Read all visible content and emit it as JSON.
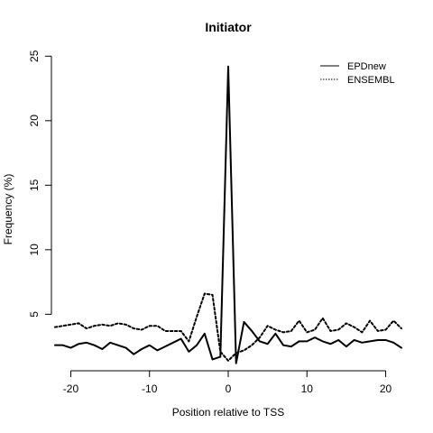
{
  "chart_data": {
    "type": "line",
    "title": "Initiator",
    "xlabel": "Position relative to TSS",
    "ylabel": "Frequency (%)",
    "xlim": [
      -22,
      22
    ],
    "ylim": [
      0.9,
      25.3
    ],
    "x_ticks": [
      -20,
      -10,
      0,
      10,
      20
    ],
    "x_tick_labels": [
      "-20",
      "-10",
      "0",
      "10",
      "20"
    ],
    "y_ticks": [
      5,
      10,
      15,
      20,
      25
    ],
    "y_tick_labels": [
      "5",
      "10",
      "15",
      "20",
      "25"
    ],
    "grid": false,
    "legend_position": "top-right",
    "x": [
      -22,
      -21,
      -20,
      -19,
      -18,
      -17,
      -16,
      -15,
      -14,
      -13,
      -12,
      -11,
      -10,
      -9,
      -8,
      -7,
      -6,
      -5,
      -4,
      -3,
      -2,
      -1,
      0,
      1,
      2,
      3,
      4,
      5,
      6,
      7,
      8,
      9,
      10,
      11,
      12,
      13,
      14,
      15,
      16,
      17,
      18,
      19,
      20,
      21,
      22
    ],
    "series": [
      {
        "name": "EPDnew",
        "line_style": "solid",
        "color": "#000000",
        "values": [
          2.6,
          2.6,
          2.4,
          2.7,
          2.8,
          2.6,
          2.3,
          2.8,
          2.6,
          2.4,
          1.9,
          2.3,
          2.6,
          2.2,
          2.5,
          2.8,
          3.1,
          2.1,
          2.6,
          3.5,
          1.5,
          1.7,
          24.2,
          1.2,
          4.4,
          3.7,
          2.9,
          2.7,
          3.5,
          2.6,
          2.5,
          2.9,
          2.9,
          3.2,
          2.9,
          2.7,
          3.0,
          2.5,
          3.0,
          2.8,
          2.9,
          3.0,
          3.0,
          2.8,
          2.4
        ]
      },
      {
        "name": "ENSEMBL",
        "line_style": "dotted",
        "color": "#000000",
        "values": [
          4.0,
          4.1,
          4.2,
          4.3,
          3.9,
          4.1,
          4.2,
          4.1,
          4.3,
          4.2,
          3.9,
          3.8,
          4.1,
          4.1,
          3.7,
          3.7,
          3.7,
          2.9,
          4.8,
          6.6,
          6.5,
          2.1,
          1.4,
          2.0,
          2.2,
          2.6,
          3.2,
          4.1,
          3.8,
          3.6,
          3.7,
          4.5,
          3.6,
          3.8,
          4.7,
          3.7,
          3.8,
          4.3,
          4.0,
          3.6,
          4.5,
          3.7,
          3.8,
          4.5,
          3.9
        ]
      }
    ]
  }
}
